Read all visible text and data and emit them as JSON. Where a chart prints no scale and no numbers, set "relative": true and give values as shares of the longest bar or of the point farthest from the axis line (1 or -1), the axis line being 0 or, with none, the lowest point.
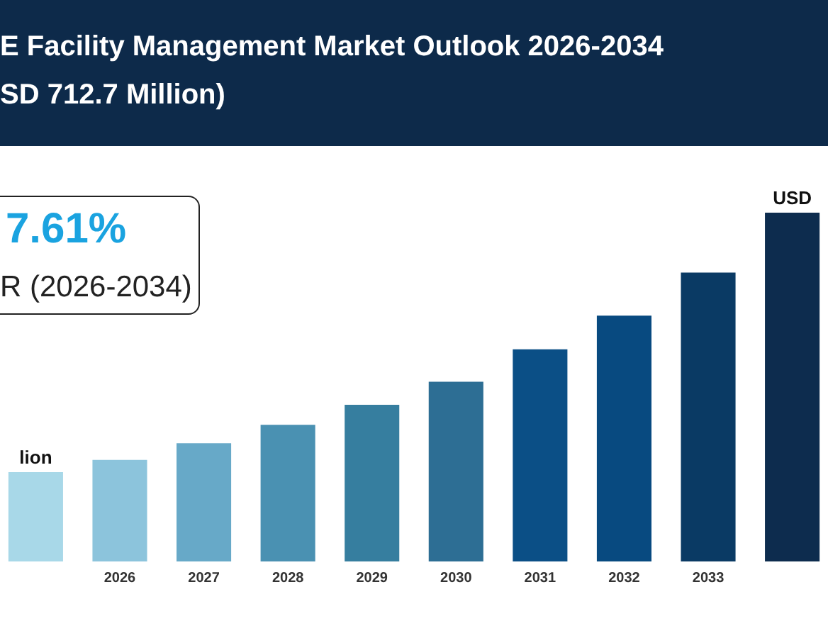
{
  "chart_data": {
    "type": "bar",
    "title": "E Facility Management Market Outlook 2026-2034",
    "subtitle": "SD 712.7 Million)",
    "relative": true,
    "categories": [
      null,
      "2026",
      "2027",
      "2028",
      "2029",
      "2030",
      "2031",
      "2032",
      "2033",
      null
    ],
    "values": [
      0.256,
      0.291,
      0.339,
      0.392,
      0.449,
      0.515,
      0.608,
      0.705,
      0.828,
      1
    ],
    "colors": [
      "#a8d8e8",
      "#8cc4dc",
      "#67a9c8",
      "#4a91b2",
      "#367e9f",
      "#2d6e94",
      "#0b4f86",
      "#084a80",
      "#0a3a64",
      "#0d2c4e"
    ],
    "annotations": [
      "7.61%",
      "R (2026-2034)",
      "lion",
      "USD"
    ]
  }
}
